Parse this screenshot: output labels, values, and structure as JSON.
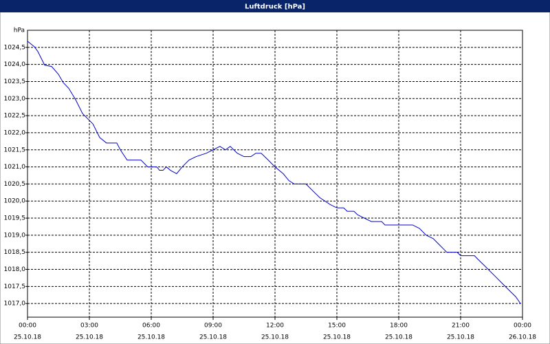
{
  "chart_data": {
    "type": "line",
    "title": "Luftdruck [hPa]",
    "y_label": "hPa",
    "x": [
      0,
      0.33,
      0.5,
      0.83,
      1.17,
      1.5,
      1.73,
      2,
      2.33,
      2.67,
      3,
      3.17,
      3.5,
      3.83,
      4.33,
      4.5,
      4.83,
      5.5,
      5.83,
      6.27,
      6.4,
      6.57,
      6.73,
      6.93,
      7.23,
      7.5,
      7.83,
      8.17,
      8.67,
      9,
      9.33,
      9.6,
      9.83,
      10.17,
      10.5,
      10.83,
      11.07,
      11.33,
      11.67,
      12,
      12.4,
      12.67,
      12.93,
      13.5,
      13.83,
      14.17,
      14.67,
      15,
      15.33,
      15.5,
      15.83,
      16,
      16.33,
      16.67,
      17.17,
      17.33,
      18.67,
      19,
      19.33,
      19.67,
      20,
      20.33,
      20.83,
      21,
      21.67,
      21.83,
      22.17,
      22.67,
      23,
      23.33,
      23.67,
      23.9
    ],
    "series": [
      {
        "name": "Luftdruck",
        "color": "#0000cc",
        "values": [
          1024.68,
          1024.52,
          1024.38,
          1023.98,
          1023.94,
          1023.71,
          1023.47,
          1023.3,
          1022.97,
          1022.56,
          1022.36,
          1022.26,
          1021.86,
          1021.7,
          1021.7,
          1021.5,
          1021.2,
          1021.2,
          1021.0,
          1021.0,
          1020.9,
          1020.9,
          1021.0,
          1020.9,
          1020.8,
          1021.0,
          1021.2,
          1021.3,
          1021.4,
          1021.5,
          1021.6,
          1021.5,
          1021.6,
          1021.4,
          1021.3,
          1021.3,
          1021.4,
          1021.4,
          1021.2,
          1021.0,
          1020.8,
          1020.6,
          1020.5,
          1020.5,
          1020.3,
          1020.1,
          1019.9,
          1019.8,
          1019.8,
          1019.7,
          1019.7,
          1019.6,
          1019.5,
          1019.4,
          1019.4,
          1019.3,
          1019.3,
          1019.2,
          1019.0,
          1018.9,
          1018.7,
          1018.5,
          1018.5,
          1018.4,
          1018.4,
          1018.3,
          1018.1,
          1017.8,
          1017.6,
          1017.4,
          1017.2,
          1017.0
        ]
      }
    ],
    "xlim": [
      0,
      24
    ],
    "xticks": [
      {
        "value": 0,
        "label": [
          "00:00",
          "25.10.18"
        ]
      },
      {
        "value": 3,
        "label": [
          "03:00",
          "25.10.18"
        ]
      },
      {
        "value": 6,
        "label": [
          "06:00",
          "25.10.18"
        ]
      },
      {
        "value": 9,
        "label": [
          "09:00",
          "25.10.18"
        ]
      },
      {
        "value": 12,
        "label": [
          "12:00",
          "25.10.18"
        ]
      },
      {
        "value": 15,
        "label": [
          "15:00",
          "25.10.18"
        ]
      },
      {
        "value": 18,
        "label": [
          "18:00",
          "25.10.18"
        ]
      },
      {
        "value": 21,
        "label": [
          "21:00",
          "25.10.18"
        ]
      },
      {
        "value": 24,
        "label": [
          "00:00",
          "26.10.18"
        ]
      }
    ],
    "ylim": [
      1016.6,
      1025.0
    ],
    "yticks": [
      {
        "value": 1017.0,
        "label": "1017,0"
      },
      {
        "value": 1017.5,
        "label": "1017,5"
      },
      {
        "value": 1018.0,
        "label": "1018,0"
      },
      {
        "value": 1018.5,
        "label": "1018,5"
      },
      {
        "value": 1019.0,
        "label": "1019,0"
      },
      {
        "value": 1019.5,
        "label": "1019,5"
      },
      {
        "value": 1020.0,
        "label": "1020,0"
      },
      {
        "value": 1020.5,
        "label": "1020,5"
      },
      {
        "value": 1021.0,
        "label": "1021,0"
      },
      {
        "value": 1021.5,
        "label": "1021,5"
      },
      {
        "value": 1022.0,
        "label": "1022,0"
      },
      {
        "value": 1022.5,
        "label": "1022,5"
      },
      {
        "value": 1023.0,
        "label": "1023,0"
      },
      {
        "value": 1023.5,
        "label": "1023,5"
      },
      {
        "value": 1024.0,
        "label": "1024,0"
      },
      {
        "value": 1024.5,
        "label": "1024,5"
      }
    ],
    "grid": true
  }
}
